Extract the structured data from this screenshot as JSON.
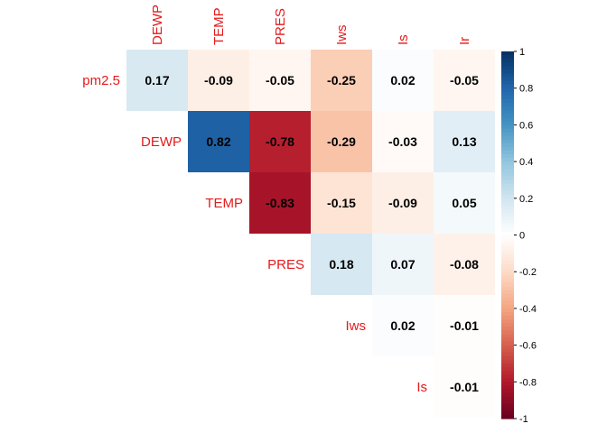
{
  "chart_data": {
    "type": "heatmap",
    "layout": "upper-triangle correlation matrix with text labels",
    "variables": [
      "pm2.5",
      "DEWP",
      "TEMP",
      "PRES",
      "Iws",
      "Is",
      "Ir"
    ],
    "column_labels": [
      "DEWP",
      "TEMP",
      "PRES",
      "Iws",
      "Is",
      "Ir"
    ],
    "row_labels": [
      "pm2.5",
      "DEWP",
      "TEMP",
      "PRES",
      "Iws",
      "Is"
    ],
    "cells": [
      {
        "row": "pm2.5",
        "col": "DEWP",
        "value": 0.17,
        "label": "0.17"
      },
      {
        "row": "pm2.5",
        "col": "TEMP",
        "value": -0.09,
        "label": "-0.09"
      },
      {
        "row": "pm2.5",
        "col": "PRES",
        "value": -0.05,
        "label": "-0.05"
      },
      {
        "row": "pm2.5",
        "col": "Iws",
        "value": -0.25,
        "label": "-0.25"
      },
      {
        "row": "pm2.5",
        "col": "Is",
        "value": 0.02,
        "label": "0.02"
      },
      {
        "row": "pm2.5",
        "col": "Ir",
        "value": -0.05,
        "label": "-0.05"
      },
      {
        "row": "DEWP",
        "col": "TEMP",
        "value": 0.82,
        "label": "0.82"
      },
      {
        "row": "DEWP",
        "col": "PRES",
        "value": -0.78,
        "label": "-0.78"
      },
      {
        "row": "DEWP",
        "col": "Iws",
        "value": -0.29,
        "label": "-0.29"
      },
      {
        "row": "DEWP",
        "col": "Is",
        "value": -0.03,
        "label": "-0.03"
      },
      {
        "row": "DEWP",
        "col": "Ir",
        "value": 0.13,
        "label": "0.13"
      },
      {
        "row": "TEMP",
        "col": "PRES",
        "value": -0.83,
        "label": "-0.83"
      },
      {
        "row": "TEMP",
        "col": "Iws",
        "value": -0.15,
        "label": "-0.15"
      },
      {
        "row": "TEMP",
        "col": "Is",
        "value": -0.09,
        "label": "-0.09"
      },
      {
        "row": "TEMP",
        "col": "Ir",
        "value": 0.05,
        "label": "0.05"
      },
      {
        "row": "PRES",
        "col": "Iws",
        "value": 0.18,
        "label": "0.18"
      },
      {
        "row": "PRES",
        "col": "Is",
        "value": 0.07,
        "label": "0.07"
      },
      {
        "row": "PRES",
        "col": "Ir",
        "value": -0.08,
        "label": "-0.08"
      },
      {
        "row": "Iws",
        "col": "Is",
        "value": 0.02,
        "label": "0.02"
      },
      {
        "row": "Iws",
        "col": "Ir",
        "value": -0.01,
        "label": "-0.01"
      },
      {
        "row": "Is",
        "col": "Ir",
        "value": -0.01,
        "label": "-0.01"
      }
    ],
    "colorbar": {
      "range": [
        -1,
        1
      ],
      "tick_values": [
        -1,
        -0.8,
        -0.6,
        -0.4,
        -0.2,
        0,
        0.2,
        0.4,
        0.6,
        0.8,
        1
      ],
      "tick_labels": [
        "-1",
        "-0.8",
        "-0.6",
        "-0.4",
        "-0.2",
        "0",
        "0.2",
        "0.4",
        "0.6",
        "0.8",
        "1"
      ],
      "placement": "right"
    },
    "colors": {
      "negative_end": "#67001f",
      "positive_end": "#053061",
      "label_text": "#e41a1c",
      "value_text": "#000000"
    },
    "grid": false
  }
}
